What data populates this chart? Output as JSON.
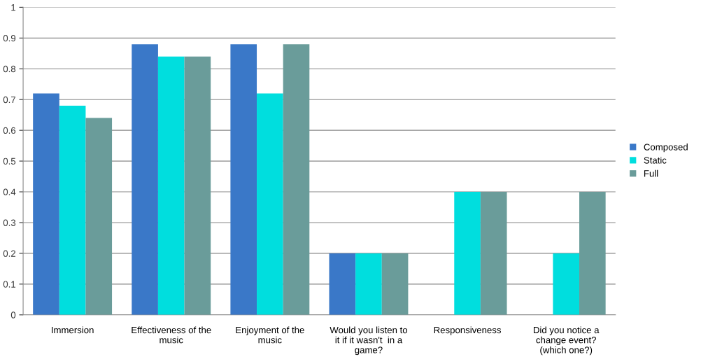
{
  "chart_data": {
    "type": "bar",
    "categories": [
      "Immersion",
      "Effectiveness of the\nmusic",
      "Enjoyment of the\nmusic",
      "Would you listen to\nit if it wasn't  in a\ngame?",
      "Responsiveness",
      "Did you notice a\nchange event?\n(which one?)"
    ],
    "series": [
      {
        "name": "Composed",
        "color": "#3a78c8",
        "values": [
          0.72,
          0.88,
          0.88,
          0.2,
          0,
          0
        ]
      },
      {
        "name": "Static",
        "color": "#00dede",
        "values": [
          0.68,
          0.84,
          0.72,
          0.2,
          0.4,
          0.2
        ]
      },
      {
        "name": "Full",
        "color": "#6a9c9a",
        "values": [
          0.64,
          0.84,
          0.88,
          0.2,
          0.4,
          0.4
        ]
      }
    ],
    "ylim": [
      0,
      1
    ],
    "yticks": [
      0,
      {
        "value": 0.1,
        "label": "0.1"
      },
      {
        "value": 0.2,
        "label": "0.2"
      },
      {
        "value": 0.3,
        "label": "0.3"
      },
      {
        "value": 0.4,
        "label": "0.4"
      },
      {
        "value": 0.5,
        "label": "0.5"
      },
      {
        "value": 0.6,
        "label": "0.6"
      },
      {
        "value": 0.7,
        "label": "0.7"
      },
      {
        "value": 0.8,
        "label": "0.8"
      },
      {
        "value": 0.9,
        "label": "0.9"
      },
      1
    ],
    "grid": "y",
    "legend": "right"
  }
}
